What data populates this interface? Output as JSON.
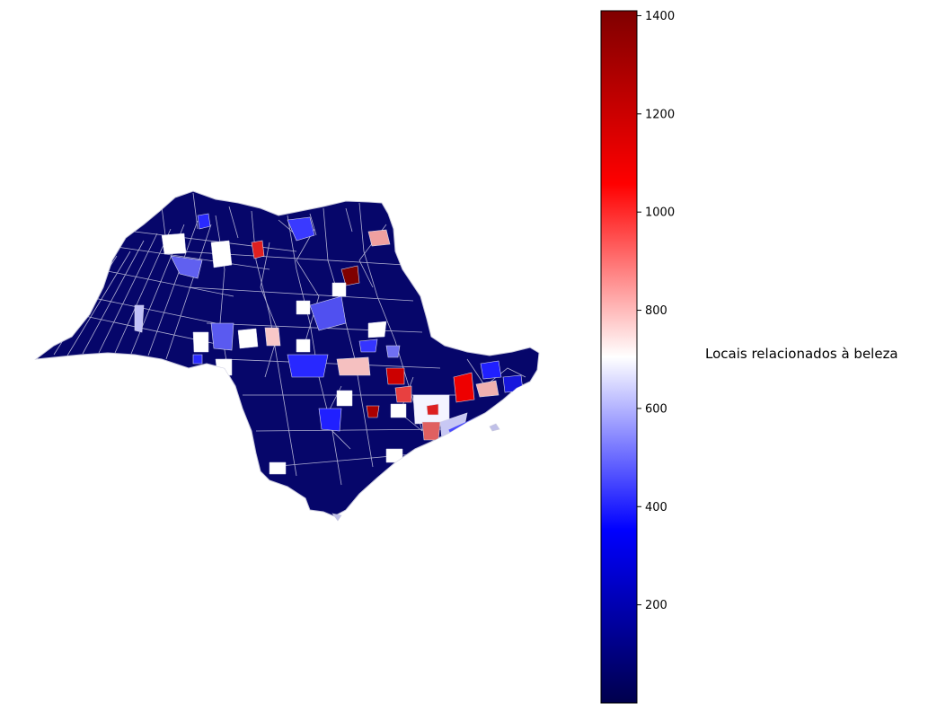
{
  "map": {
    "region": "São Paulo state municipalities (choropleth)",
    "colormap": "seismic",
    "missing_color": "#ffffff",
    "border_color": "#d8d8e8"
  },
  "colorbar": {
    "label": "Locais relacionados à beleza",
    "min": 0,
    "max": 1410,
    "ticks": [
      {
        "value": 200,
        "label": "200"
      },
      {
        "value": 400,
        "label": "400"
      },
      {
        "value": 600,
        "label": "600"
      },
      {
        "value": 800,
        "label": "800"
      },
      {
        "value": 1000,
        "label": "1000"
      },
      {
        "value": 1200,
        "label": "1200"
      },
      {
        "value": 1400,
        "label": "1400"
      }
    ]
  }
}
